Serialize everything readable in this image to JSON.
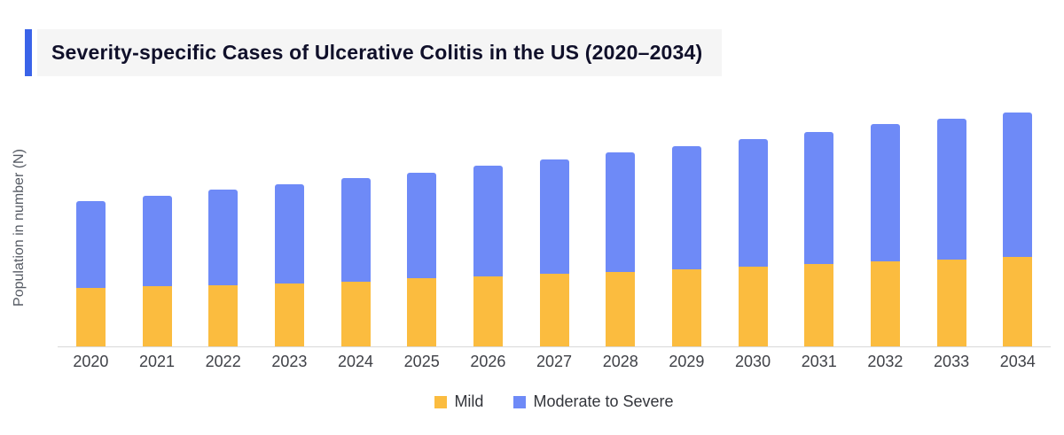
{
  "header": {
    "title": "Severity-specific Cases of Ulcerative Colitis in the US (2020–2034)",
    "accent_color": "#3a63e8",
    "title_bg_color": "#f5f5f5"
  },
  "axes": {
    "y_label": "Population in number (N)"
  },
  "legend": {
    "items": [
      {
        "label": "Mild",
        "color": "#fbbc3f"
      },
      {
        "label": "Moderate to Severe",
        "color": "#6e8af7"
      }
    ]
  },
  "chart_data": {
    "type": "bar",
    "stacked": true,
    "title": "Severity-specific Cases of Ulcerative Colitis in the US (2020–2034)",
    "xlabel": "",
    "ylabel": "Population in number (N)",
    "categories": [
      "2020",
      "2021",
      "2022",
      "2023",
      "2024",
      "2025",
      "2026",
      "2027",
      "2028",
      "2029",
      "2030",
      "2031",
      "2032",
      "2033",
      "2034"
    ],
    "series": [
      {
        "name": "Mild",
        "color": "#fbbc3f",
        "values": [
          66,
          68,
          69,
          71,
          73,
          77,
          79,
          82,
          84,
          87,
          90,
          93,
          96,
          98,
          101
        ]
      },
      {
        "name": "Moderate to Severe",
        "color": "#6e8af7",
        "values": [
          98,
          102,
          108,
          112,
          117,
          119,
          125,
          129,
          135,
          139,
          144,
          149,
          155,
          159,
          163
        ]
      }
    ],
    "totals": [
      164,
      170,
      177,
      183,
      190,
      196,
      204,
      211,
      219,
      226,
      234,
      242,
      251,
      257,
      264
    ],
    "units": "relative units (no numeric y-axis ticks shown)",
    "ylim": [
      0,
      270
    ],
    "y_ticks_visible": false,
    "grid": false,
    "legend_position": "bottom"
  }
}
